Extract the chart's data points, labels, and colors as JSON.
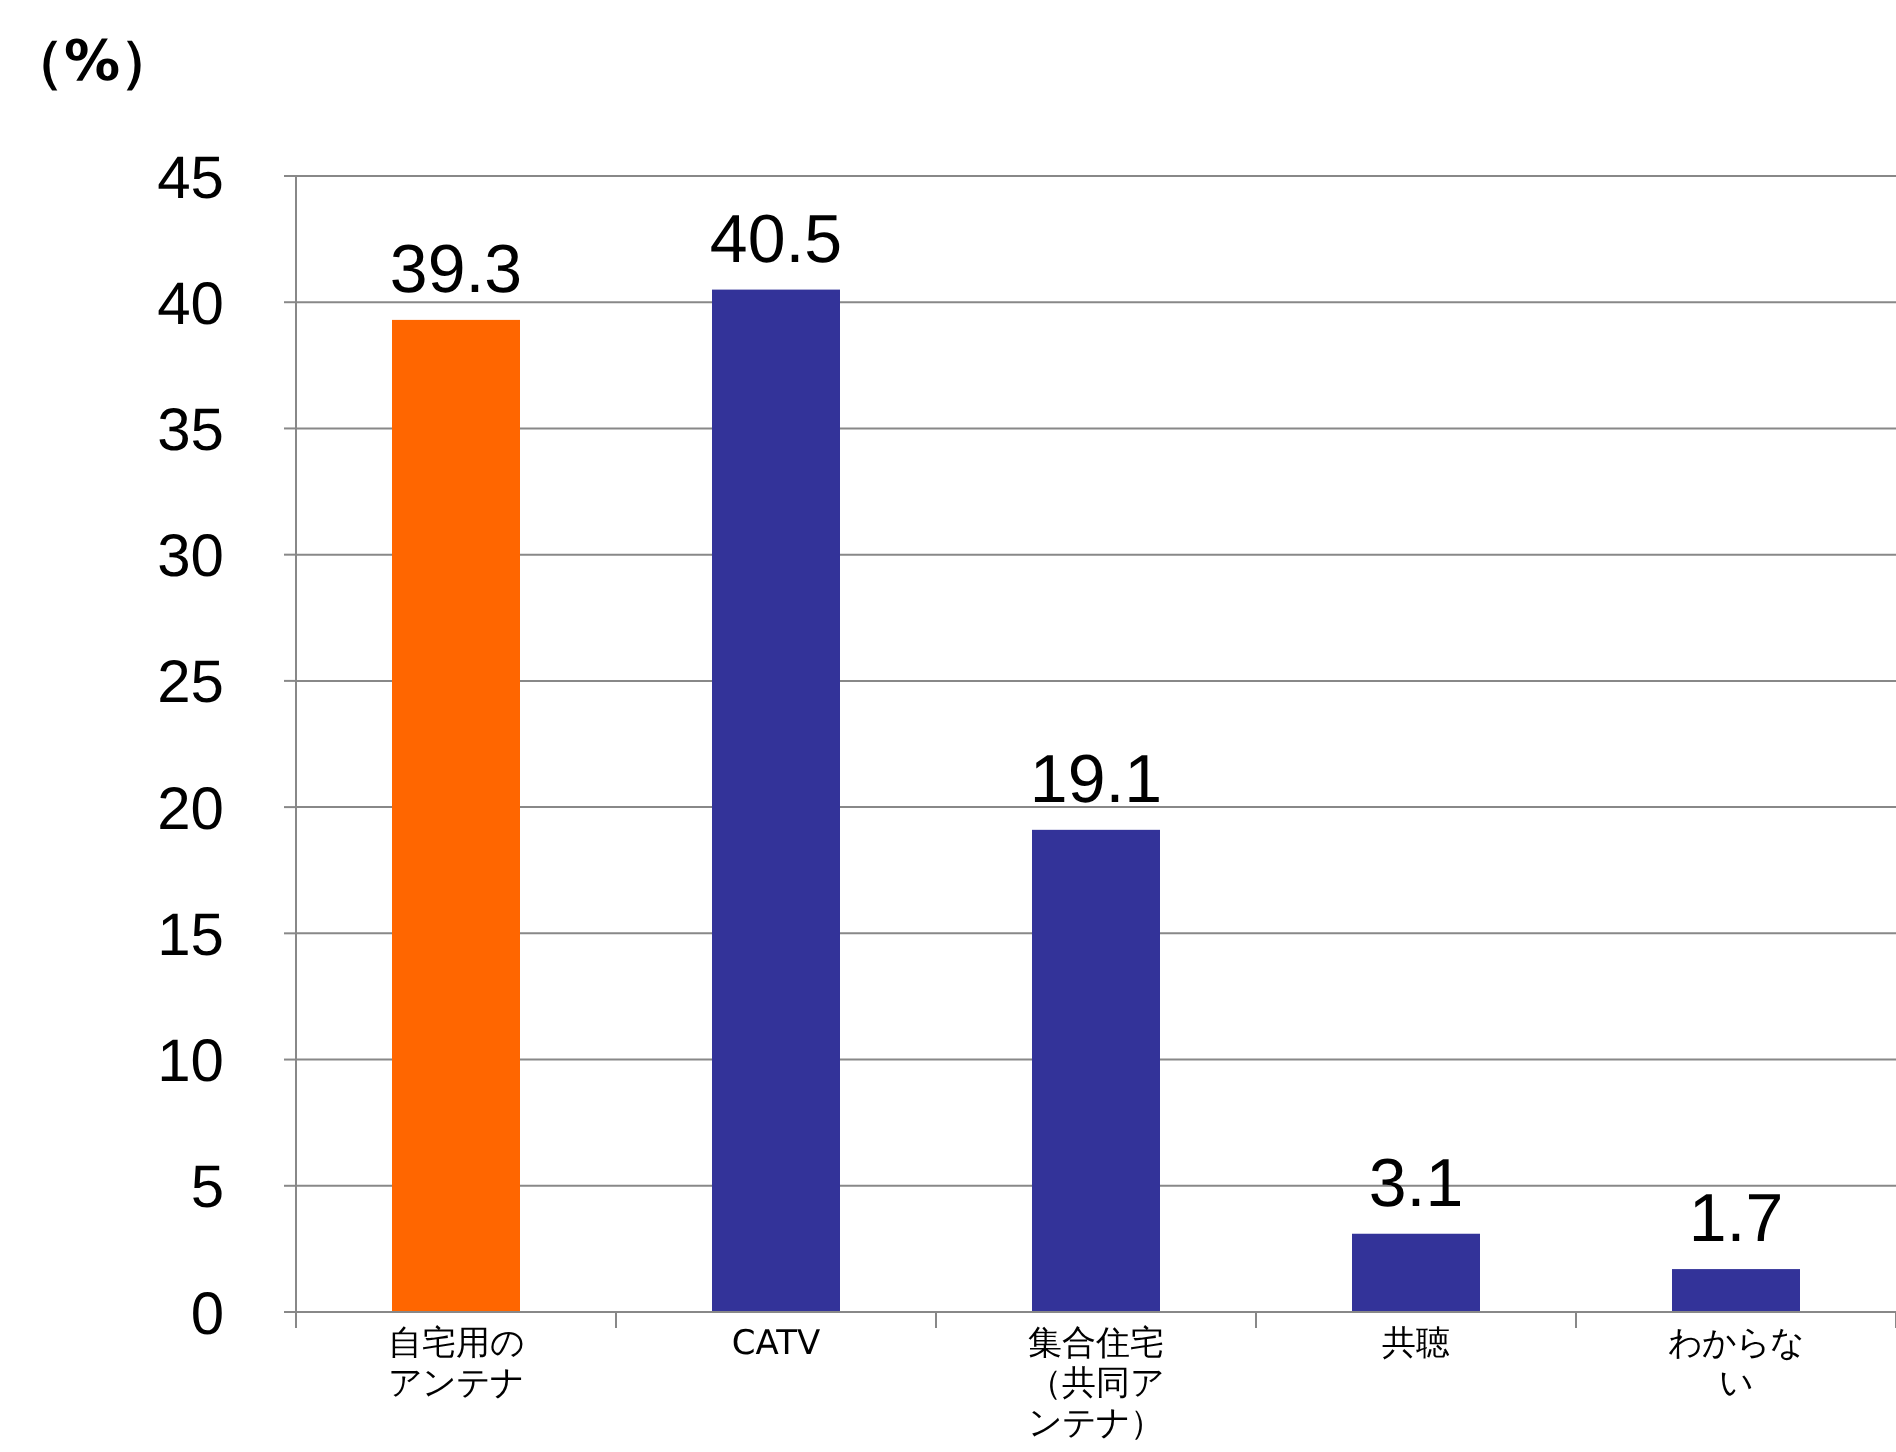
{
  "chart_data": {
    "type": "bar",
    "ylabel": "（%）",
    "categories": [
      "自宅用のアンテナ",
      "CATV",
      "集合住宅（共同アンテナ）",
      "共聴",
      "わからない"
    ],
    "values": [
      39.3,
      40.5,
      19.1,
      3.1,
      1.7
    ],
    "colors": [
      "#ff6600",
      "#333399",
      "#333399",
      "#333399",
      "#333399"
    ],
    "ylim": [
      0,
      45
    ],
    "yticks": [
      0,
      5,
      10,
      15,
      20,
      25,
      30,
      35,
      40,
      45
    ],
    "grid": "y",
    "data_labels": true
  }
}
